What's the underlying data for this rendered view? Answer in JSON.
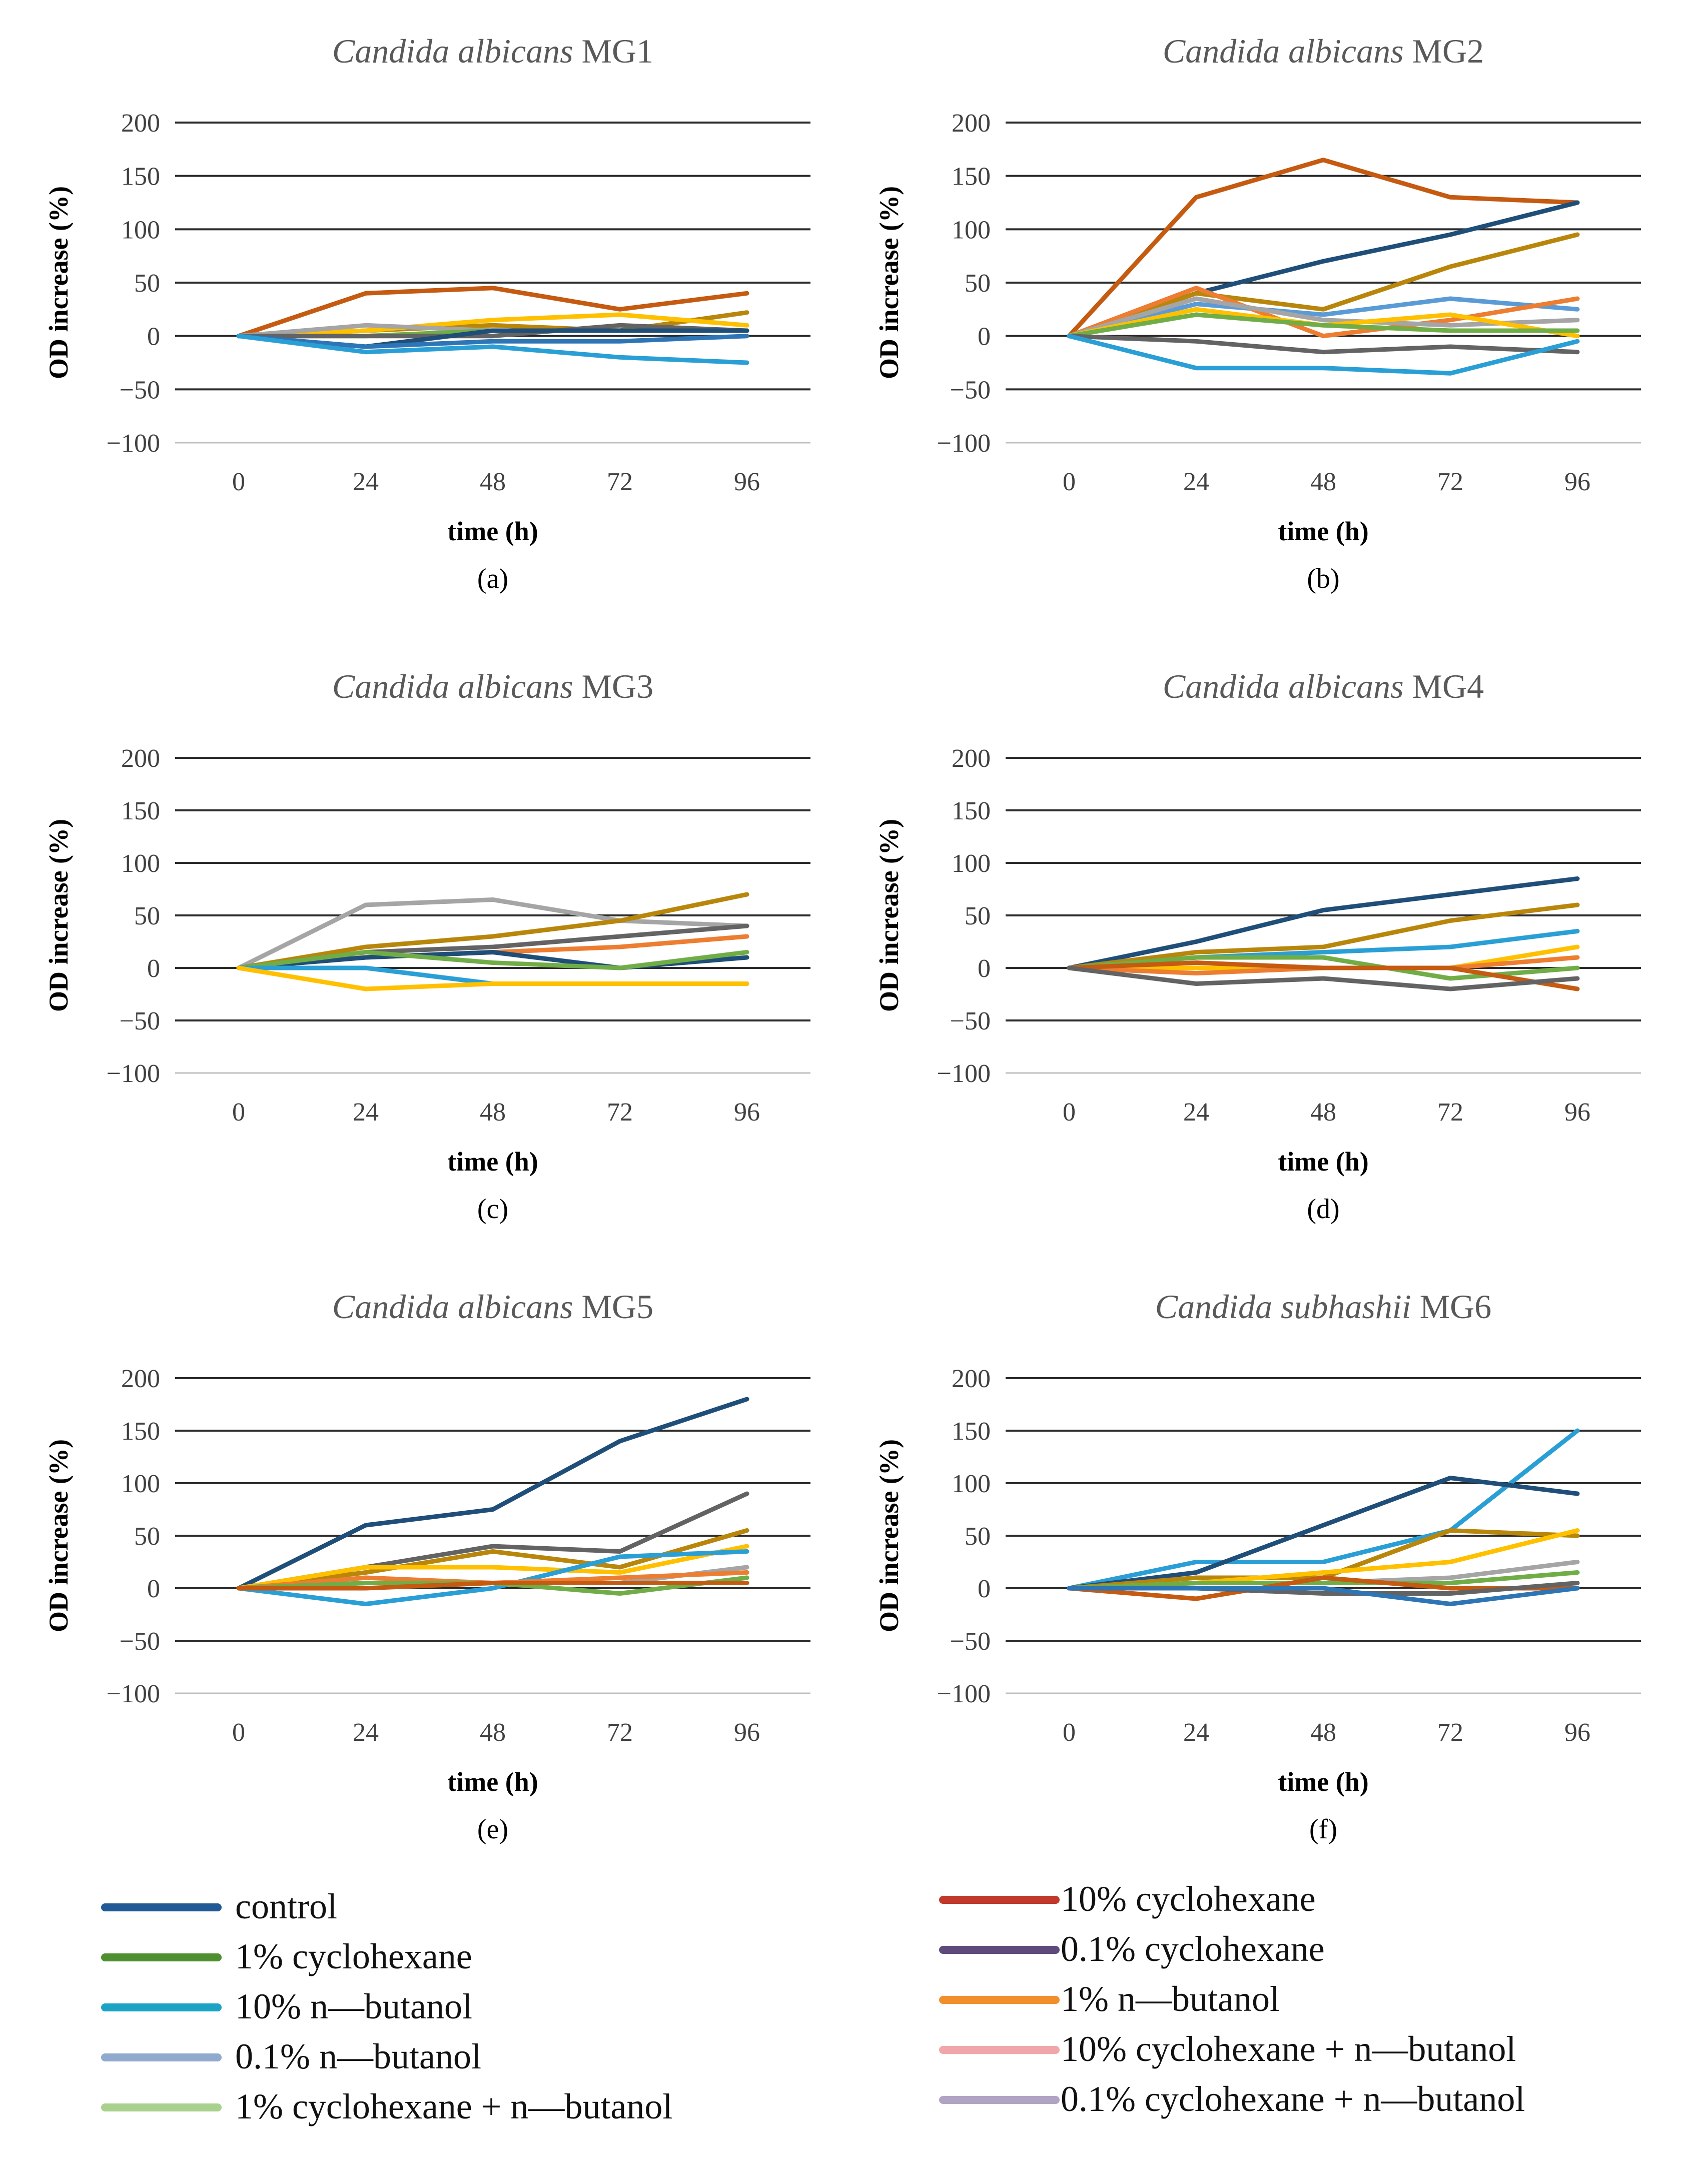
{
  "chart_data": {
    "type": "line",
    "x": [
      0,
      24,
      48,
      72,
      96
    ],
    "xlabel": "time (h)",
    "ylabel": "OD increase (%)",
    "ylim": [
      -100,
      200
    ],
    "yticks": [
      "200",
      "150",
      "100",
      "50",
      "0",
      "−50",
      "−100"
    ],
    "xticks": [
      "0",
      "24",
      "48",
      "72",
      "96"
    ],
    "legend": [
      {
        "id": "control",
        "label": "control",
        "color": "#1f5a96"
      },
      {
        "id": "cyc1",
        "label": "1% cyclohexane",
        "color": "#4e8f2f"
      },
      {
        "id": "but10",
        "label": "10% n—butanol",
        "color": "#1aa3c4"
      },
      {
        "id": "but01",
        "label": "0.1% n—butanol",
        "color": "#8faacc"
      },
      {
        "id": "mix1",
        "label": "1% cyclohexane + n—butanol",
        "color": "#a9d18e"
      },
      {
        "id": "cyc10",
        "label": "10% cyclohexane",
        "color": "#c0392b"
      },
      {
        "id": "cyc01",
        "label": "0.1% cyclohexane",
        "color": "#5f4a7c"
      },
      {
        "id": "but1",
        "label": "1% n—butanol",
        "color": "#f28e2b"
      },
      {
        "id": "mix10",
        "label": "10% cyclohexane + n—butanol",
        "color": "#f1a7a9"
      },
      {
        "id": "mix01",
        "label": "0.1% cyclohexane + n—butanol",
        "color": "#b1a3c4"
      }
    ],
    "panels": [
      {
        "letter": "(a)",
        "species": "Candida albicans",
        "strain": "MG1",
        "series": [
          {
            "name": "s_orange",
            "color": "#c55a11",
            "values": [
              0,
              40,
              45,
              25,
              40
            ]
          },
          {
            "name": "s_olive",
            "color": "#b8860b",
            "values": [
              0,
              5,
              10,
              5,
              22
            ]
          },
          {
            "name": "s_yellow",
            "color": "#ffc000",
            "values": [
              0,
              5,
              15,
              20,
              10
            ]
          },
          {
            "name": "s_gray",
            "color": "#a5a5a5",
            "values": [
              0,
              10,
              5,
              5,
              5
            ]
          },
          {
            "name": "s_green",
            "color": "#70ad47",
            "values": [
              0,
              0,
              5,
              5,
              5
            ]
          },
          {
            "name": "s_dkgray",
            "color": "#636363",
            "values": [
              0,
              0,
              0,
              10,
              5
            ]
          },
          {
            "name": "s_navy",
            "color": "#1f4e79",
            "values": [
              0,
              -10,
              5,
              5,
              5
            ]
          },
          {
            "name": "s_blue",
            "color": "#2e75b6",
            "values": [
              0,
              -10,
              -5,
              -5,
              0
            ]
          },
          {
            "name": "s_cyan",
            "color": "#2a9fd6",
            "values": [
              0,
              -15,
              -10,
              -20,
              -25
            ]
          }
        ]
      },
      {
        "letter": "(b)",
        "species": "Candida albicans",
        "strain": "MG2",
        "series": [
          {
            "name": "s_orange",
            "color": "#c55a11",
            "values": [
              0,
              130,
              165,
              130,
              125
            ]
          },
          {
            "name": "s_navy",
            "color": "#1f4e79",
            "values": [
              0,
              40,
              70,
              95,
              125
            ]
          },
          {
            "name": "s_olive",
            "color": "#b8860b",
            "values": [
              0,
              40,
              25,
              65,
              95
            ]
          },
          {
            "name": "s_blue",
            "color": "#5b9bd5",
            "values": [
              0,
              30,
              20,
              35,
              25
            ]
          },
          {
            "name": "s_lorange",
            "color": "#ed7d31",
            "values": [
              0,
              45,
              0,
              15,
              35
            ]
          },
          {
            "name": "s_gray",
            "color": "#a5a5a5",
            "values": [
              0,
              35,
              15,
              10,
              15
            ]
          },
          {
            "name": "s_yellow",
            "color": "#ffc000",
            "values": [
              0,
              25,
              10,
              20,
              0
            ]
          },
          {
            "name": "s_green",
            "color": "#70ad47",
            "values": [
              0,
              20,
              10,
              5,
              5
            ]
          },
          {
            "name": "s_dkgray",
            "color": "#636363",
            "values": [
              0,
              -5,
              -15,
              -10,
              -15
            ]
          },
          {
            "name": "s_cyan",
            "color": "#2a9fd6",
            "values": [
              0,
              -30,
              -30,
              -35,
              -5
            ]
          }
        ]
      },
      {
        "letter": "(c)",
        "species": "Candida albicans",
        "strain": "MG3",
        "series": [
          {
            "name": "s_gray",
            "color": "#a5a5a5",
            "values": [
              0,
              60,
              65,
              45,
              40
            ]
          },
          {
            "name": "s_olive",
            "color": "#b8860b",
            "values": [
              0,
              20,
              30,
              45,
              70
            ]
          },
          {
            "name": "s_dkgray",
            "color": "#636363",
            "values": [
              0,
              15,
              20,
              30,
              40
            ]
          },
          {
            "name": "s_lorange",
            "color": "#ed7d31",
            "values": [
              0,
              10,
              15,
              20,
              30
            ]
          },
          {
            "name": "s_navy",
            "color": "#1f4e79",
            "values": [
              0,
              10,
              15,
              0,
              10
            ]
          },
          {
            "name": "s_green",
            "color": "#70ad47",
            "values": [
              0,
              15,
              5,
              0,
              15
            ]
          },
          {
            "name": "s_cyan",
            "color": "#2a9fd6",
            "values": [
              0,
              0,
              -15,
              -15,
              -15
            ]
          },
          {
            "name": "s_yellow",
            "color": "#ffc000",
            "values": [
              0,
              -20,
              -15,
              -15,
              -15
            ]
          }
        ]
      },
      {
        "letter": "(d)",
        "species": "Candida albicans",
        "strain": "MG4",
        "series": [
          {
            "name": "s_navy",
            "color": "#1f4e79",
            "values": [
              0,
              25,
              55,
              70,
              85
            ]
          },
          {
            "name": "s_olive",
            "color": "#b8860b",
            "values": [
              0,
              15,
              20,
              45,
              60
            ]
          },
          {
            "name": "s_cyan",
            "color": "#2a9fd6",
            "values": [
              0,
              10,
              15,
              20,
              35
            ]
          },
          {
            "name": "s_yellow",
            "color": "#ffc000",
            "values": [
              0,
              0,
              0,
              0,
              20
            ]
          },
          {
            "name": "s_green",
            "color": "#70ad47",
            "values": [
              0,
              10,
              10,
              -10,
              0
            ]
          },
          {
            "name": "s_lorange",
            "color": "#ed7d31",
            "values": [
              0,
              -5,
              0,
              0,
              10
            ]
          },
          {
            "name": "s_orange",
            "color": "#c55a11",
            "values": [
              0,
              5,
              0,
              0,
              -20
            ]
          },
          {
            "name": "s_dkgray",
            "color": "#636363",
            "values": [
              0,
              -15,
              -10,
              -20,
              -10
            ]
          }
        ]
      },
      {
        "letter": "(e)",
        "species": "Candida albicans",
        "strain": "MG5",
        "series": [
          {
            "name": "s_navy",
            "color": "#1f4e79",
            "values": [
              0,
              60,
              75,
              140,
              180
            ]
          },
          {
            "name": "s_dkgray",
            "color": "#636363",
            "values": [
              0,
              20,
              40,
              35,
              90
            ]
          },
          {
            "name": "s_olive",
            "color": "#b8860b",
            "values": [
              0,
              15,
              35,
              20,
              55
            ]
          },
          {
            "name": "s_yellow",
            "color": "#ffc000",
            "values": [
              0,
              20,
              20,
              15,
              40
            ]
          },
          {
            "name": "s_cyan",
            "color": "#2a9fd6",
            "values": [
              0,
              -15,
              0,
              30,
              35
            ]
          },
          {
            "name": "s_gray",
            "color": "#a5a5a5",
            "values": [
              0,
              5,
              5,
              5,
              20
            ]
          },
          {
            "name": "s_lorange",
            "color": "#ed7d31",
            "values": [
              0,
              10,
              5,
              10,
              15
            ]
          },
          {
            "name": "s_green",
            "color": "#70ad47",
            "values": [
              0,
              5,
              5,
              -5,
              10
            ]
          },
          {
            "name": "s_orange",
            "color": "#c55a11",
            "values": [
              0,
              0,
              5,
              5,
              5
            ]
          }
        ]
      },
      {
        "letter": "(f)",
        "species": "Candida subhashii",
        "strain": "MG6",
        "series": [
          {
            "name": "s_cyan",
            "color": "#2a9fd6",
            "values": [
              0,
              25,
              25,
              55,
              150
            ]
          },
          {
            "name": "s_navy",
            "color": "#1f4e79",
            "values": [
              0,
              15,
              60,
              105,
              90
            ]
          },
          {
            "name": "s_olive",
            "color": "#b8860b",
            "values": [
              0,
              10,
              10,
              55,
              50
            ]
          },
          {
            "name": "s_yellow",
            "color": "#ffc000",
            "values": [
              0,
              5,
              15,
              25,
              55
            ]
          },
          {
            "name": "s_gray",
            "color": "#a5a5a5",
            "values": [
              0,
              5,
              5,
              10,
              25
            ]
          },
          {
            "name": "s_green",
            "color": "#70ad47",
            "values": [
              0,
              5,
              5,
              5,
              15
            ]
          },
          {
            "name": "s_orange",
            "color": "#c55a11",
            "values": [
              0,
              -10,
              10,
              0,
              0
            ]
          },
          {
            "name": "s_dkgray",
            "color": "#636363",
            "values": [
              0,
              0,
              -5,
              -5,
              5
            ]
          },
          {
            "name": "s_blue",
            "color": "#2e75b6",
            "values": [
              0,
              0,
              0,
              -15,
              0
            ]
          }
        ]
      }
    ]
  }
}
